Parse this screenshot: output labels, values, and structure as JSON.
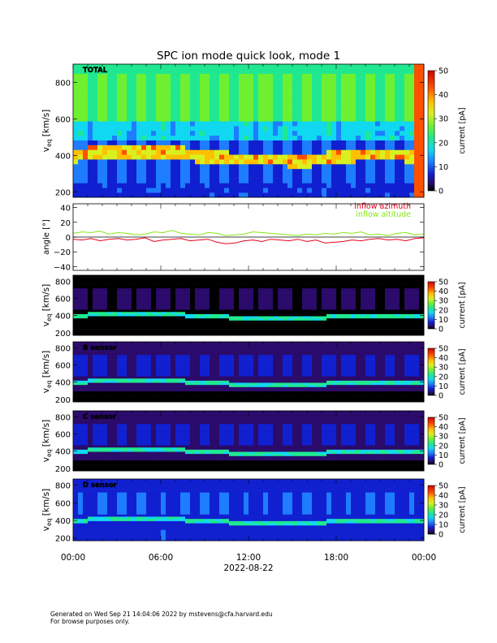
{
  "title": "SPC ion mode quick look, mode 1",
  "footer": {
    "line1": "Generated on Wed Sep 21 14:04:06 2022 by mstevens@cfa.harvard.edu",
    "line2": "For browse purposes only."
  },
  "colors": {
    "azimuth": "#e8001c",
    "altitude": "#88e614"
  },
  "chart_data": [
    {
      "type": "heatmap",
      "panel_label": "TOTAL",
      "ylabel_main": "v",
      "ylabel_sub": "eq",
      "ylabel_unit": "[km/s]",
      "yticks": [
        "200",
        "400",
        "600",
        "800"
      ],
      "ylim": [
        170,
        900
      ],
      "zlabel": "current [pA]",
      "zticks": [
        "0",
        "10",
        "20",
        "30",
        "40",
        "50"
      ],
      "zlim": [
        0,
        50
      ]
    },
    {
      "type": "line",
      "ylabel": "angle [°]",
      "yticks": [
        "−40",
        "−20",
        "0",
        "20",
        "40"
      ],
      "ylim": [
        -45,
        45
      ],
      "series": [
        {
          "name": "inflow azimuth",
          "values": [
            -3,
            -4,
            -2,
            -5,
            -3,
            -2,
            -4,
            -3,
            -1,
            -6,
            -4,
            -3,
            -2,
            -5,
            -4,
            -3,
            -7,
            -9,
            -8,
            -5,
            -4,
            -6,
            -3,
            -4,
            -5,
            -3,
            -6,
            -4,
            -8,
            -7,
            -6,
            -4,
            -5,
            -3,
            -2,
            -4,
            -3,
            -5,
            -2,
            -1
          ]
        },
        {
          "name": "inflow altitude",
          "values": [
            5,
            7,
            6,
            8,
            4,
            6,
            5,
            3,
            4,
            7,
            6,
            9,
            5,
            4,
            3,
            6,
            5,
            2,
            3,
            4,
            7,
            6,
            5,
            4,
            3,
            2,
            4,
            3,
            5,
            4,
            6,
            5,
            7,
            3,
            4,
            2,
            5,
            6,
            3,
            4
          ]
        }
      ]
    },
    {
      "type": "heatmap",
      "panel_label": "",
      "ylabel_main": "v",
      "ylabel_sub": "eq",
      "ylabel_unit": "[km/s]",
      "yticks": [
        "200",
        "400",
        "600",
        "800"
      ],
      "ylim": [
        170,
        870
      ],
      "zlabel": "current [pA]",
      "zticks": [
        "0",
        "10",
        "20",
        "30",
        "40",
        "50"
      ],
      "zlim": [
        0,
        50
      ]
    },
    {
      "type": "heatmap",
      "panel_label": "B sensor",
      "ylabel_main": "v",
      "ylabel_sub": "eq",
      "ylabel_unit": "[km/s]",
      "yticks": [
        "200",
        "400",
        "600",
        "800"
      ],
      "ylim": [
        170,
        870
      ],
      "zlabel": "current [pA]",
      "zticks": [
        "0",
        "10",
        "20",
        "30",
        "40",
        "50"
      ],
      "zlim": [
        0,
        50
      ]
    },
    {
      "type": "heatmap",
      "panel_label": "C sensor",
      "ylabel_main": "v",
      "ylabel_sub": "eq",
      "ylabel_unit": "[km/s]",
      "yticks": [
        "200",
        "400",
        "600",
        "800"
      ],
      "ylim": [
        170,
        870
      ],
      "zlabel": "current [pA]",
      "zticks": [
        "0",
        "10",
        "20",
        "30",
        "40",
        "50"
      ],
      "zlim": [
        0,
        50
      ]
    },
    {
      "type": "heatmap",
      "panel_label": "D sensor",
      "ylabel_main": "v",
      "ylabel_sub": "eq",
      "ylabel_unit": "[km/s]",
      "yticks": [
        "200",
        "400",
        "600",
        "800"
      ],
      "ylim": [
        170,
        870
      ],
      "zlabel": "current [pA]",
      "zticks": [
        "0",
        "10",
        "20",
        "30",
        "40",
        "50"
      ],
      "zlim": [
        0,
        50
      ]
    }
  ],
  "xaxis": {
    "ticks": [
      "00:00",
      "06:00",
      "12:00",
      "18:00",
      "00:00"
    ],
    "label": "2022-08-22"
  }
}
